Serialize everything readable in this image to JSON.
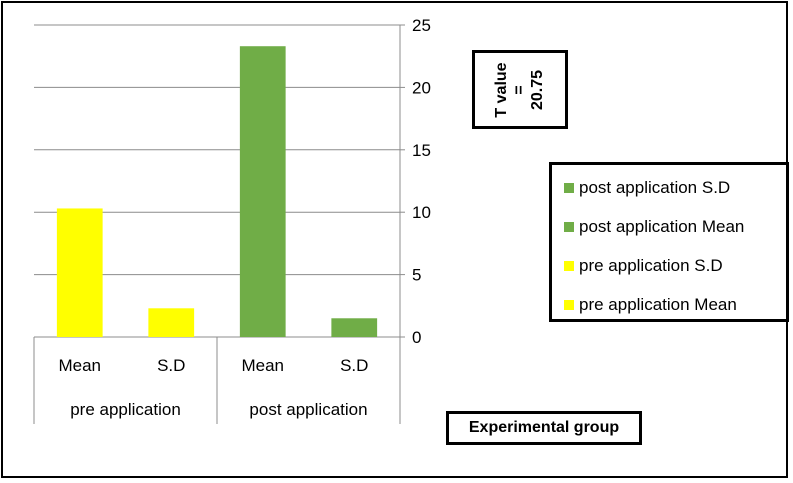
{
  "chart_data": {
    "type": "bar",
    "title": "",
    "group_labels": [
      "pre application",
      "post application"
    ],
    "categories": [
      "Mean",
      "S.D",
      "Mean",
      "S.D"
    ],
    "values": [
      10.3,
      2.3,
      23.3,
      1.5
    ],
    "bar_colors": [
      "#ffff00",
      "#ffff00",
      "#70ad47",
      "#70ad47"
    ],
    "ylim": [
      0,
      25
    ],
    "yticks": [
      0,
      5,
      10,
      15,
      20,
      25
    ],
    "ytick_labels": [
      "0",
      "5",
      "10",
      "15",
      "20",
      "25"
    ],
    "y_axis_side": "right",
    "grid": true,
    "xlabel": "Experimental group",
    "legend_position": "right",
    "legend": [
      {
        "label": "post application S.D",
        "color": "#70ad47"
      },
      {
        "label": "post application Mean",
        "color": "#70ad47"
      },
      {
        "label": "pre application S.D",
        "color": "#ffff00"
      },
      {
        "label": "pre application Mean",
        "color": "#ffff00"
      }
    ],
    "annotation": {
      "line1": "T value",
      "line2": "=",
      "line3": "20.75"
    }
  }
}
